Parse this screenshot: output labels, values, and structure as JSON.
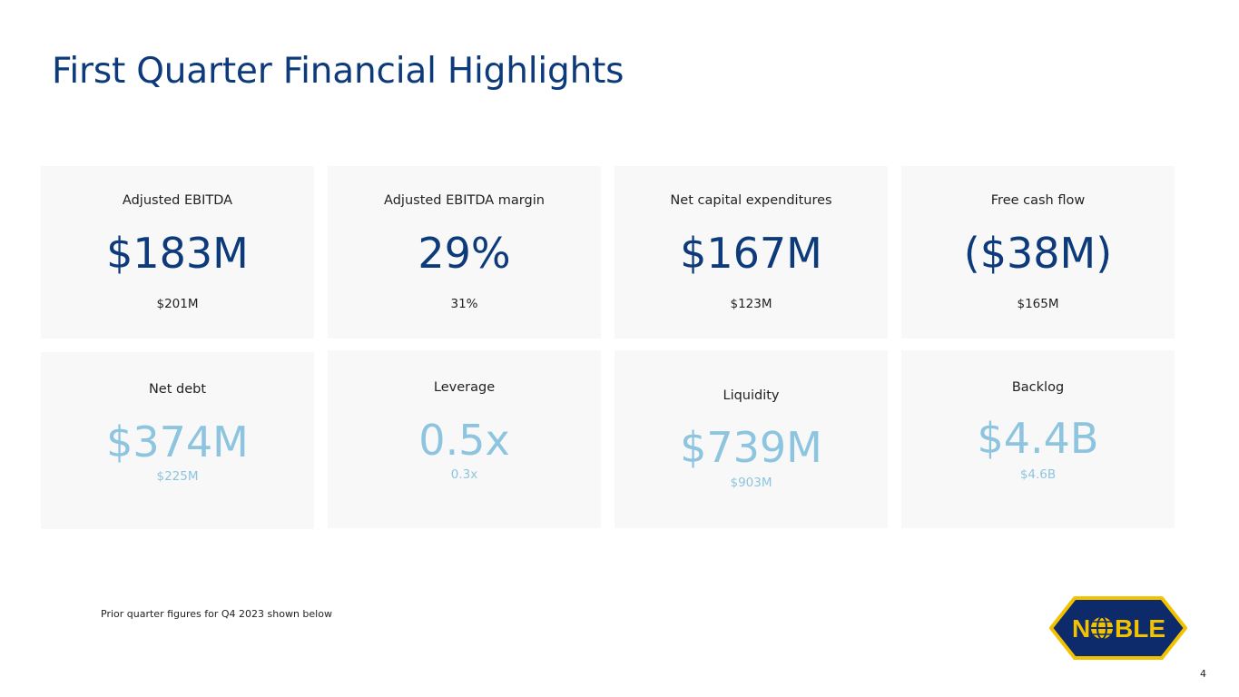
{
  "title": "First Quarter Financial Highlights",
  "metrics_row1": [
    {
      "label": "Adjusted EBITDA",
      "value": "$183M",
      "prior": "$201M"
    },
    {
      "label": "Adjusted EBITDA margin",
      "value": "29%",
      "prior": "31%"
    },
    {
      "label": "Net capital expenditures",
      "value": "$167M",
      "prior": "$123M"
    },
    {
      "label": "Free cash flow",
      "value": "($38M)",
      "prior": "$165M"
    }
  ],
  "metrics_row2": [
    {
      "label": "Net debt",
      "value": "$374M",
      "prior": "$225M"
    },
    {
      "label": "Leverage",
      "value": "0.5x",
      "prior": "0.3x"
    },
    {
      "label": "Liquidity",
      "value": "$739M",
      "prior": "$903M"
    },
    {
      "label": "Backlog",
      "value": "$4.4B",
      "prior": "$4.6B"
    }
  ],
  "footnote": "Prior quarter figures for Q4 2023 shown below",
  "page_number": "4",
  "logo": {
    "text": "NOBLE",
    "icon": "globe-icon",
    "fill": "#0d2b6b",
    "border": "#f2c200"
  },
  "colors": {
    "primary": "#0d3a7a",
    "secondary": "#8dc5e0",
    "card_bg": "#f8f8f8"
  }
}
